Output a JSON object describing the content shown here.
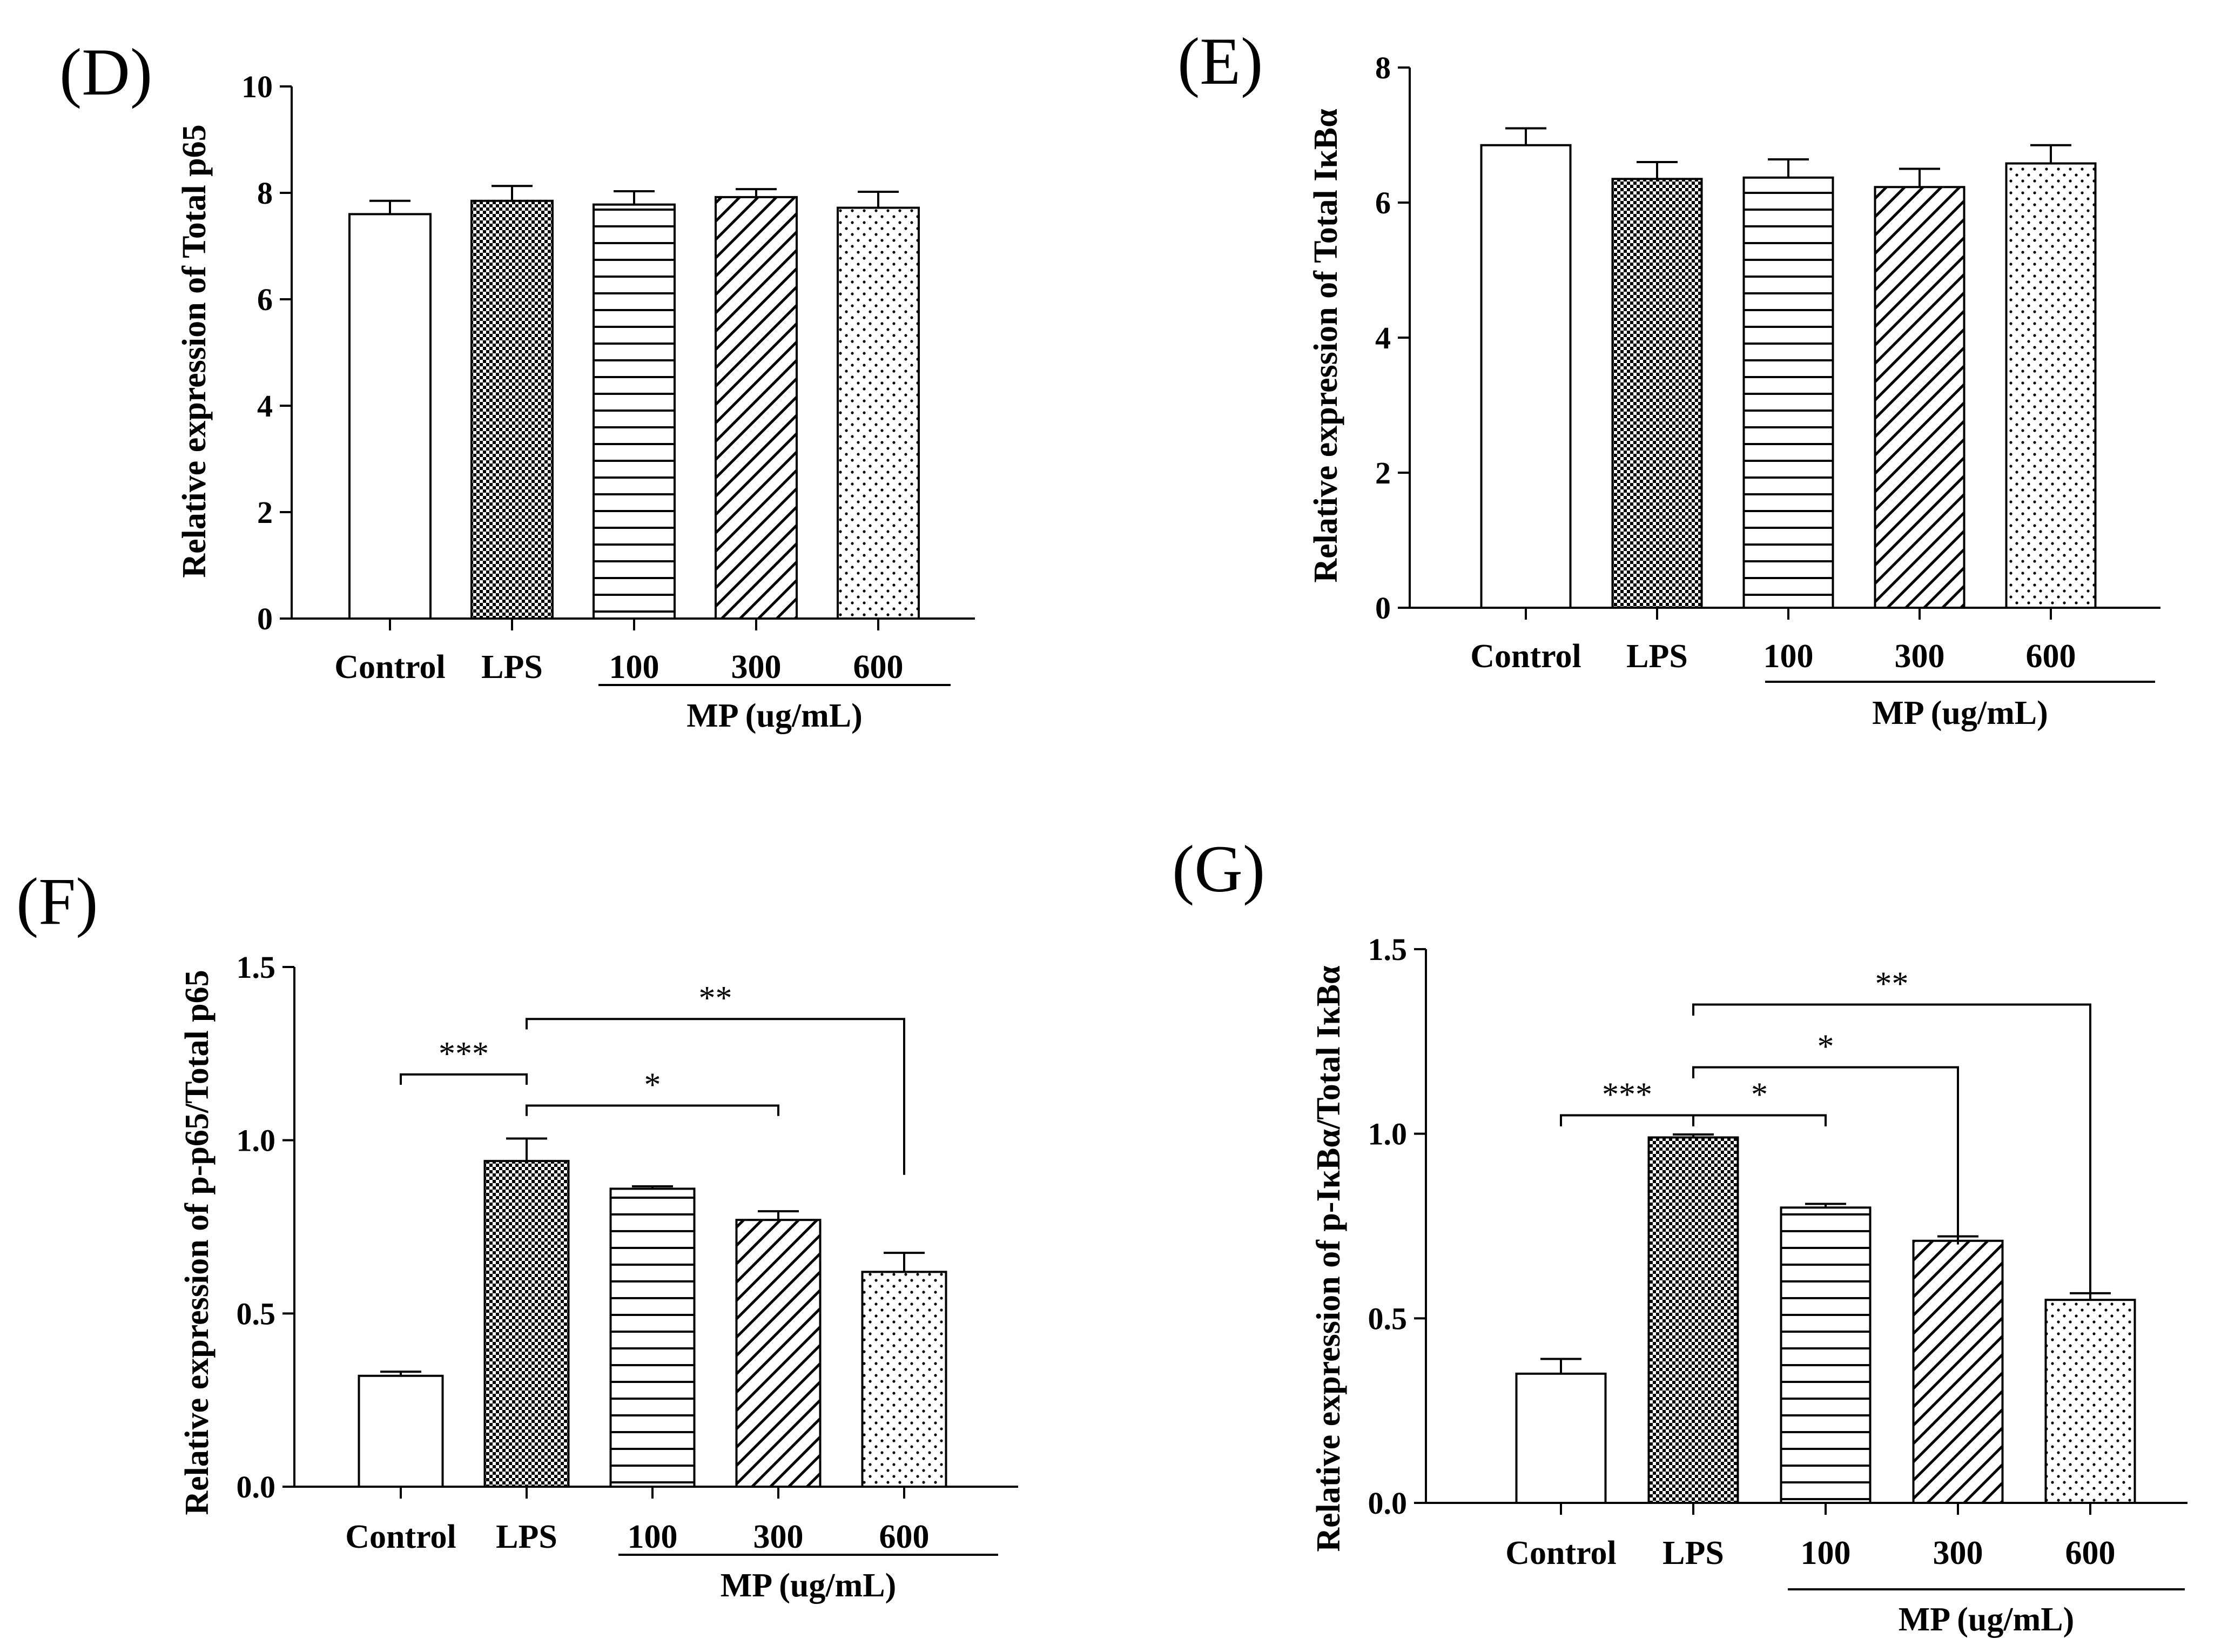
{
  "colors": {
    "axis": "#000000",
    "bar_fill": "#ffffff",
    "bar_stroke": "#000000"
  },
  "chart_data": [
    {
      "panel": "(D)",
      "type": "bar",
      "ylabel": "Relative expression of Total p65",
      "ylim": [
        0,
        10
      ],
      "yticks": [
        0,
        2,
        4,
        6,
        8,
        10
      ],
      "ytick_labels": [
        "0",
        "2",
        "4",
        "6",
        "8",
        "10"
      ],
      "categories": [
        "Control",
        "LPS",
        "100",
        "300",
        "600"
      ],
      "values": [
        7.6,
        7.85,
        7.78,
        7.92,
        7.72
      ],
      "errors": [
        0.25,
        0.28,
        0.25,
        0.15,
        0.3
      ],
      "patterns": [
        "none",
        "checker",
        "hlines",
        "diag",
        "dots"
      ],
      "group_label": "MP (ug/mL)",
      "significance": []
    },
    {
      "panel": "(E)",
      "type": "bar",
      "ylabel": "Relative expression of Total IκBα",
      "ylim": [
        0,
        8
      ],
      "yticks": [
        0,
        2,
        4,
        6,
        8
      ],
      "ytick_labels": [
        "0",
        "2",
        "4",
        "6",
        "8"
      ],
      "categories": [
        "Control",
        "LPS",
        "100",
        "300",
        "600"
      ],
      "values": [
        6.85,
        6.35,
        6.37,
        6.23,
        6.58
      ],
      "errors": [
        0.25,
        0.25,
        0.27,
        0.27,
        0.27
      ],
      "patterns": [
        "none",
        "checker",
        "hlines",
        "diag",
        "dots"
      ],
      "group_label": "MP (ug/mL)",
      "significance": []
    },
    {
      "panel": "(F)",
      "type": "bar",
      "ylabel": "Relative expression of p-p65/Total p65",
      "ylim": [
        0,
        1.5
      ],
      "yticks": [
        0,
        0.5,
        1,
        1.5
      ],
      "ytick_labels": [
        "0.0",
        "0.5",
        "1.0",
        "1.5"
      ],
      "categories": [
        "Control",
        "LPS",
        "100",
        "300",
        "600"
      ],
      "values": [
        0.32,
        0.94,
        0.86,
        0.77,
        0.62
      ],
      "errors": [
        0.012,
        0.065,
        0.007,
        0.025,
        0.055
      ],
      "patterns": [
        "none",
        "checker",
        "hlines",
        "diag",
        "dots"
      ],
      "group_label": "MP (ug/mL)",
      "significance": [
        {
          "from": 0,
          "to": 1,
          "y": 1.19,
          "label": "***",
          "drop_left": 0.03,
          "drop_right": 0.03
        },
        {
          "from": 1,
          "to": 3,
          "y": 1.1,
          "label": "*",
          "drop_left": 0.03,
          "drop_right": 0.03
        },
        {
          "from": 1,
          "to": 4,
          "y": 1.35,
          "label": "**",
          "drop_left": 0.03,
          "drop_right": 0.45
        }
      ]
    },
    {
      "panel": "(G)",
      "type": "bar",
      "ylabel": "Relative expression of p-IκBα/Total IκBα",
      "ylim": [
        0,
        1.5
      ],
      "yticks": [
        0,
        0.5,
        1,
        1.5
      ],
      "ytick_labels": [
        "0.0",
        "0.5",
        "1.0",
        "1.5"
      ],
      "categories": [
        "Control",
        "LPS",
        "100",
        "300",
        "600"
      ],
      "values": [
        0.35,
        0.99,
        0.8,
        0.71,
        0.55
      ],
      "errors": [
        0.04,
        0.008,
        0.01,
        0.012,
        0.018
      ],
      "patterns": [
        "none",
        "checker",
        "hlines",
        "diag",
        "dots"
      ],
      "group_label": "MP (ug/mL)",
      "significance": [
        {
          "from": 0,
          "to": 1,
          "y": 1.05,
          "label": "***",
          "drop_left": 0.03,
          "drop_right": 0.03
        },
        {
          "from": 1,
          "to": 2,
          "y": 1.05,
          "label": "*",
          "drop_left": 0.03,
          "drop_right": 0.03
        },
        {
          "from": 1,
          "to": 3,
          "y": 1.18,
          "label": "*",
          "drop_left": 0.03,
          "drop_right": 0.48
        },
        {
          "from": 1,
          "to": 4,
          "y": 1.35,
          "label": "**",
          "drop_left": 0.03,
          "drop_right": 0.79
        }
      ]
    }
  ]
}
